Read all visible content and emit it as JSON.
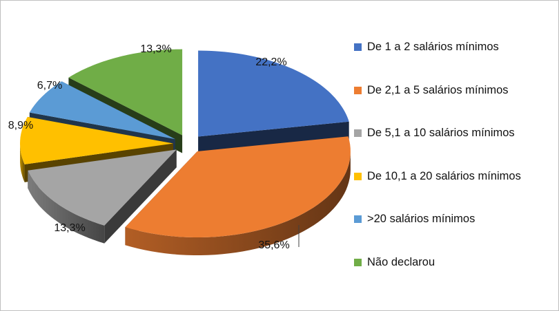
{
  "chart_data": {
    "type": "pie",
    "title": "",
    "style": "3d-exploded",
    "legend_position": "right",
    "categories": [
      "De 1 a 2 salários mínimos",
      "De 2,1 a 5 salários mínimos",
      "De 5,1 a 10 salários mínimos",
      "De 10,1 a 20 salários mínimos",
      ">20 salários mínimos",
      "Não declarou"
    ],
    "values": [
      22.2,
      35.6,
      13.3,
      8.9,
      6.7,
      13.3
    ],
    "labels": [
      "22,2%",
      "35,6%",
      "13,3%",
      "8,9%",
      "6,7%",
      "13,3%"
    ],
    "colors": [
      "#4472c4",
      "#ed7d31",
      "#a5a5a5",
      "#ffc000",
      "#5b9bd5",
      "#70ad47"
    ]
  }
}
